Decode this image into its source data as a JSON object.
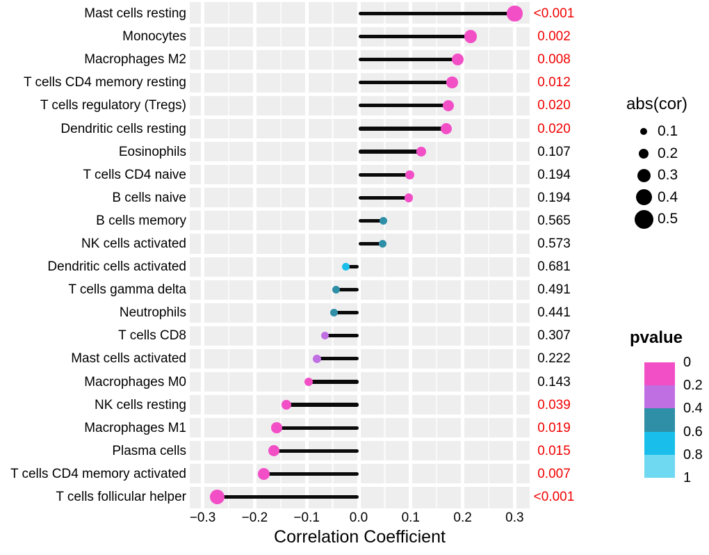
{
  "chart_data": {
    "type": "scatter",
    "variant": "lollipop",
    "xlabel": "Correlation Coefficient",
    "xlim": [
      -0.326,
      0.329
    ],
    "x_ticks": [
      -0.3,
      -0.2,
      -0.1,
      0.0,
      0.1,
      0.2,
      0.3
    ],
    "x_tick_labels": [
      "−0.3",
      "−0.2",
      "−0.1",
      "0.0",
      "0.1",
      "0.2",
      "0.3"
    ],
    "grid": true,
    "points": [
      {
        "label": "Mast cells resting",
        "cor": 0.3,
        "pvalue": 0.0005,
        "pvalue_label": "<0.001"
      },
      {
        "label": "Monocytes",
        "cor": 0.215,
        "pvalue": 0.002,
        "pvalue_label": "0.002"
      },
      {
        "label": "Macrophages M2",
        "cor": 0.19,
        "pvalue": 0.008,
        "pvalue_label": "0.008"
      },
      {
        "label": "T cells CD4 memory resting",
        "cor": 0.18,
        "pvalue": 0.012,
        "pvalue_label": "0.012"
      },
      {
        "label": "T cells regulatory (Tregs)",
        "cor": 0.172,
        "pvalue": 0.02,
        "pvalue_label": "0.020"
      },
      {
        "label": "Dendritic cells resting",
        "cor": 0.168,
        "pvalue": 0.02,
        "pvalue_label": "0.020"
      },
      {
        "label": "Eosinophils",
        "cor": 0.12,
        "pvalue": 0.107,
        "pvalue_label": "0.107"
      },
      {
        "label": "T cells CD4 naive",
        "cor": 0.098,
        "pvalue": 0.194,
        "pvalue_label": "0.194"
      },
      {
        "label": "B cells naive",
        "cor": 0.096,
        "pvalue": 0.194,
        "pvalue_label": "0.194"
      },
      {
        "label": "B cells memory",
        "cor": 0.047,
        "pvalue": 0.565,
        "pvalue_label": "0.565"
      },
      {
        "label": "NK cells activated",
        "cor": 0.046,
        "pvalue": 0.573,
        "pvalue_label": "0.573"
      },
      {
        "label": "Dendritic cells activated",
        "cor": -0.025,
        "pvalue": 0.681,
        "pvalue_label": "0.681"
      },
      {
        "label": "T cells gamma delta",
        "cor": -0.043,
        "pvalue": 0.491,
        "pvalue_label": "0.491"
      },
      {
        "label": "Neutrophils",
        "cor": -0.048,
        "pvalue": 0.441,
        "pvalue_label": "0.441"
      },
      {
        "label": "T cells CD8",
        "cor": -0.065,
        "pvalue": 0.307,
        "pvalue_label": "0.307"
      },
      {
        "label": "Mast cells activated",
        "cor": -0.08,
        "pvalue": 0.222,
        "pvalue_label": "0.222"
      },
      {
        "label": "Macrophages M0",
        "cor": -0.096,
        "pvalue": 0.143,
        "pvalue_label": "0.143"
      },
      {
        "label": "NK cells resting",
        "cor": -0.139,
        "pvalue": 0.039,
        "pvalue_label": "0.039"
      },
      {
        "label": "Macrophages M1",
        "cor": -0.158,
        "pvalue": 0.019,
        "pvalue_label": "0.019"
      },
      {
        "label": "Plasma cells",
        "cor": -0.163,
        "pvalue": 0.015,
        "pvalue_label": "0.015"
      },
      {
        "label": "T cells CD4 memory activated",
        "cor": -0.183,
        "pvalue": 0.007,
        "pvalue_label": "0.007"
      },
      {
        "label": "T cells follicular helper",
        "cor": -0.272,
        "pvalue": 0.0005,
        "pvalue_label": "<0.001"
      }
    ],
    "significance_threshold": 0.05,
    "size_legend": {
      "title": "abs(cor)",
      "values": [
        "0.1",
        "0.2",
        "0.3",
        "0.4",
        "0.5"
      ],
      "diameters": [
        10,
        14,
        19,
        23,
        27
      ]
    },
    "color_legend": {
      "title": "pvalue",
      "tick_labels": [
        "0",
        "0.2",
        "0.4",
        "0.6",
        "0.8",
        "1"
      ],
      "band_colors": [
        "#f24fc6",
        "#c06fe2",
        "#2e8fa6",
        "#19bfea",
        "#6ed9f1"
      ],
      "band_limits": [
        0.2,
        0.4,
        0.6,
        0.8,
        1.0
      ]
    },
    "colors": {
      "stem": "#0a0a0a",
      "significant_pvalue_text": "#f10000",
      "normal_pvalue_text": "#000000",
      "panel_background": "#efeeef"
    }
  }
}
